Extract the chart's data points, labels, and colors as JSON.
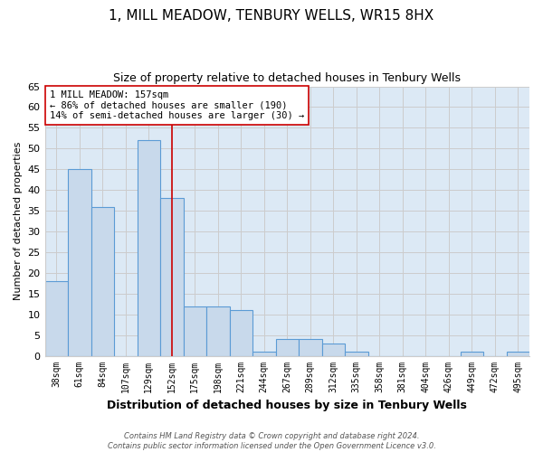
{
  "title": "1, MILL MEADOW, TENBURY WELLS, WR15 8HX",
  "subtitle": "Size of property relative to detached houses in Tenbury Wells",
  "xlabel": "Distribution of detached houses by size in Tenbury Wells",
  "ylabel": "Number of detached properties",
  "bar_labels": [
    "38sqm",
    "61sqm",
    "84sqm",
    "107sqm",
    "129sqm",
    "152sqm",
    "175sqm",
    "198sqm",
    "221sqm",
    "244sqm",
    "267sqm",
    "289sqm",
    "312sqm",
    "335sqm",
    "358sqm",
    "381sqm",
    "404sqm",
    "426sqm",
    "449sqm",
    "472sqm",
    "495sqm"
  ],
  "bar_values": [
    18,
    45,
    36,
    0,
    52,
    38,
    12,
    12,
    11,
    1,
    4,
    4,
    3,
    1,
    0,
    0,
    0,
    0,
    1,
    0,
    1
  ],
  "bar_color": "#c8d9eb",
  "bar_edge_color": "#5b9bd5",
  "vline_x_idx": 5,
  "annotation_text": "1 MILL MEADOW: 157sqm\n← 86% of detached houses are smaller (190)\n14% of semi-detached houses are larger (30) →",
  "annotation_box_color": "#ffffff",
  "annotation_box_edge_color": "#cc0000",
  "vline_color": "#cc0000",
  "ylim": [
    0,
    65
  ],
  "yticks": [
    0,
    5,
    10,
    15,
    20,
    25,
    30,
    35,
    40,
    45,
    50,
    55,
    60,
    65
  ],
  "grid_color": "#cccccc",
  "background_color": "#dce9f5",
  "title_fontsize": 11,
  "subtitle_fontsize": 9,
  "xlabel_fontsize": 9,
  "ylabel_fontsize": 8,
  "footer_text": "Contains HM Land Registry data © Crown copyright and database right 2024.\nContains public sector information licensed under the Open Government Licence v3.0."
}
